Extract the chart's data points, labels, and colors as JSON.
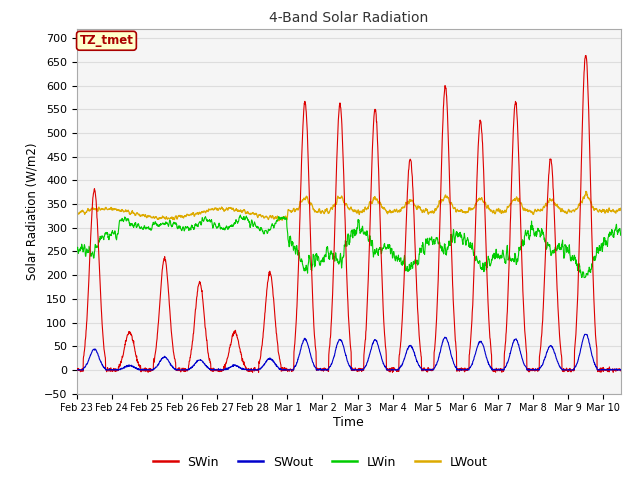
{
  "title": "4-Band Solar Radiation",
  "xlabel": "Time",
  "ylabel": "Solar Radiation (W/m2)",
  "ylim": [
    -50,
    720
  ],
  "yticks": [
    -50,
    0,
    50,
    100,
    150,
    200,
    250,
    300,
    350,
    400,
    450,
    500,
    550,
    600,
    650,
    700
  ],
  "legend_labels": [
    "SWin",
    "SWout",
    "LWin",
    "LWout"
  ],
  "legend_colors": [
    "#dd0000",
    "#0000cc",
    "#00cc00",
    "#ddaa00"
  ],
  "annotation_text": "TZ_tmet",
  "annotation_bg": "#ffffcc",
  "annotation_border": "#aa0000",
  "grid_color": "#dddddd",
  "fig_bg_color": "#ffffff",
  "plot_bg_color": "#f5f5f5",
  "n_points": 2000,
  "total_days": 15.5,
  "xtick_labels": [
    "Feb 23",
    "Feb 24",
    "Feb 25",
    "Feb 26",
    "Feb 27",
    "Feb 28",
    "Mar 1",
    "Mar 2",
    "Mar 3",
    "Mar 4",
    "Mar 5",
    "Mar 6",
    "Mar 7",
    "Mar 8",
    "Mar 9",
    "Mar 10"
  ]
}
